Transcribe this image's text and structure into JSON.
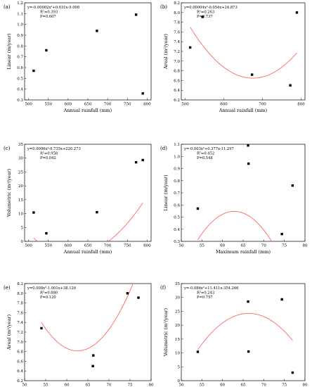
{
  "chart_data": [
    {
      "panel": "(a)",
      "type": "scatter",
      "xlabel": "Annual rainfall (mm)",
      "ylabel": "Linear (m/year)",
      "xlim": [
        490,
        810
      ],
      "ylim": [
        0.3,
        1.2
      ],
      "xticks": [
        "500",
        "550",
        "600",
        "650",
        "700",
        "750",
        "800"
      ],
      "yticks": [
        "0.3",
        "0.4",
        "0.5",
        "0.6",
        "0.7",
        "0.8",
        "0.9",
        "1.0",
        "1.1",
        "1.2"
      ],
      "x": [
        513,
        545,
        673,
        772,
        789
      ],
      "y": [
        0.57,
        0.76,
        0.94,
        1.09,
        0.36
      ],
      "fit": {
        "a": -2e-05,
        "b": 0.031,
        "c": -9.008,
        "lo": 513,
        "hi": 789
      },
      "annotation": [
        "y=-0.00002x²+0.031x-9.008",
        "R²=0.393",
        "P=0.607"
      ]
    },
    {
      "panel": "(b)",
      "type": "scatter",
      "xlabel": "Annual rainfall (mm)",
      "ylabel": "Areal (m²/year)",
      "xlim": [
        490,
        810
      ],
      "ylim": [
        6.2,
        8.2
      ],
      "xticks": [
        "500",
        "600",
        "700",
        "800"
      ],
      "yticks": [
        "6.2",
        "6.4",
        "6.6",
        "6.8",
        "7.0",
        "7.2",
        "7.4",
        "7.6",
        "7.8",
        "8.0",
        "8.2"
      ],
      "x": [
        513,
        545,
        673,
        772,
        789
      ],
      "y": [
        7.28,
        7.91,
        6.72,
        6.5,
        8.0
      ],
      "fit": {
        "a": 4e-05,
        "b": -0.054,
        "c": 24.873,
        "lo": 513,
        "hi": 789
      },
      "annotation": [
        "y=0.00004x²-0.054x+24.873",
        "R²=0.263",
        "P=0.737"
      ]
    },
    {
      "panel": "(c)",
      "type": "scatter",
      "xlabel": "Annual rainfall (mm)",
      "ylabel": "Volumetric (m³/year)",
      "xlim": [
        490,
        810
      ],
      "ylim": [
        0,
        35
      ],
      "xticks": [
        "500",
        "550",
        "600",
        "650",
        "700",
        "750",
        "800"
      ],
      "yticks": [
        "0",
        "5",
        "10",
        "15",
        "20",
        "25",
        "30",
        "35"
      ],
      "x": [
        513,
        545,
        673,
        772,
        789
      ],
      "y": [
        10.4,
        2.9,
        10.5,
        28.5,
        29.3
      ],
      "fit": {
        "a": 0.0006,
        "b": -0.735,
        "c": 220.273,
        "lo": 513,
        "hi": 789
      },
      "annotation": [
        "y=0.0006x²-0.735x+220.273",
        "R²=0.958",
        "P=0.042"
      ]
    },
    {
      "panel": "(d)",
      "type": "scatter",
      "xlabel": "Maximum rainfall (mm)",
      "ylabel": "Linear (m/year)",
      "xlim": [
        50,
        80
      ],
      "ylim": [
        0.3,
        1.1
      ],
      "xticks": [
        "50",
        "55",
        "60",
        "65",
        "70",
        "75",
        "80"
      ],
      "yticks": [
        "0.3",
        "0.4",
        "0.5",
        "0.6",
        "0.7",
        "0.8",
        "0.9",
        "1.0",
        "1.1"
      ],
      "x": [
        54,
        66.2,
        66.3,
        74.4,
        77
      ],
      "y": [
        0.57,
        1.09,
        0.94,
        0.36,
        0.76
      ],
      "fit": {
        "a": -0.003,
        "b": 0.377,
        "c": -11.297,
        "lo": 54,
        "hi": 77
      },
      "annotation": [
        "y=-0.003x²+0.377x-11.297",
        "R²=0.452",
        "P=0.548"
      ]
    },
    {
      "panel": "(e)",
      "type": "scatter",
      "xlabel": "Maximum rainfall (mm)",
      "ylabel": "Areal (m²/year)",
      "xlim": [
        50,
        80
      ],
      "ylim": [
        6.2,
        8.2
      ],
      "xticks": [
        "50",
        "55",
        "60",
        "65",
        "70",
        "75",
        "80"
      ],
      "yticks": [
        "6.2",
        "6.4",
        "6.6",
        "6.8",
        "7.0",
        "7.2",
        "7.4",
        "7.6",
        "7.8",
        "8.0",
        "8.2"
      ],
      "x": [
        54,
        66.2,
        66.3,
        74.4,
        77
      ],
      "y": [
        7.28,
        6.5,
        6.72,
        8.0,
        7.91
      ],
      "fit": {
        "a": 0.008,
        "b": -1.001,
        "c": 38.126,
        "lo": 54,
        "hi": 77
      },
      "annotation": [
        "y=0.008x²-1.001x+38.126",
        "R²=0.880",
        "P=0.120"
      ]
    },
    {
      "panel": "(f)",
      "type": "scatter",
      "xlabel": "Maximum rainfall (mm)",
      "ylabel": "Volumetric (m³/year)",
      "xlim": [
        50,
        80
      ],
      "ylim": [
        0,
        35
      ],
      "xticks": [
        "50",
        "55",
        "60",
        "65",
        "70",
        "75",
        "80"
      ],
      "yticks": [
        "0",
        "5",
        "10",
        "15",
        "20",
        "25",
        "30",
        "35"
      ],
      "x": [
        54,
        66.2,
        66.3,
        74.4,
        77
      ],
      "y": [
        10.4,
        28.5,
        10.5,
        29.3,
        2.9
      ],
      "fit": {
        "a": -0.086,
        "b": 11.411,
        "c": -354.266,
        "lo": 54,
        "hi": 77
      },
      "annotation": [
        "y=-0.086x²+11.411x-354.266",
        "R²=0.243",
        "P=0.757"
      ]
    }
  ]
}
